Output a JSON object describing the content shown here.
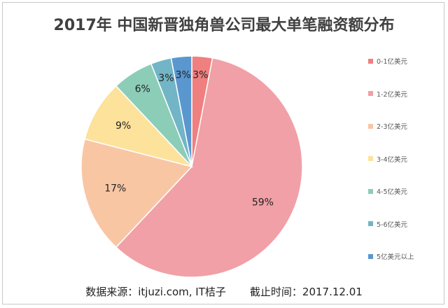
{
  "chart_data": {
    "type": "pie",
    "title": "2017年 中国新晋独角兽公司最大单笔融资额分布",
    "categories": [
      "0-1亿美元",
      "1-2亿美元",
      "2-3亿美元",
      "3-4亿美元",
      "4-5亿美元",
      "5-6亿美元",
      "5亿美元以上"
    ],
    "values": [
      3,
      59,
      17,
      9,
      6,
      3,
      3
    ],
    "labels": [
      "3%",
      "59%",
      "17%",
      "9%",
      "6%",
      "3%",
      "3%"
    ],
    "colors": [
      "#f07f7f",
      "#f0a0a6",
      "#f9c6a4",
      "#fde29c",
      "#8ccdb8",
      "#72b5c6",
      "#5b97cf"
    ],
    "legend_position": "right"
  },
  "footer": {
    "source": "数据来源：itjuzi.com, IT桔子",
    "date": "截止时间：2017.12.01"
  }
}
